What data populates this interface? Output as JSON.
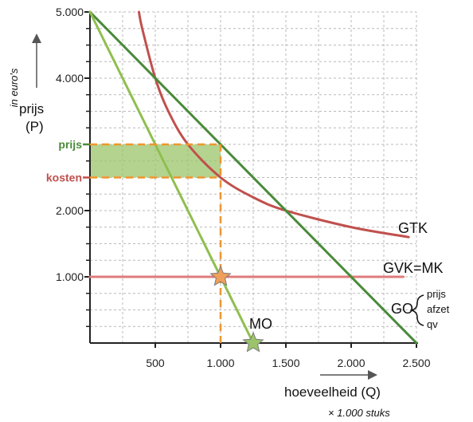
{
  "chart_data": {
    "type": "line",
    "ylabel_unit": "in euro's",
    "ylabel_name": "prijs",
    "ylabel_symbol": "(P)",
    "xlabel": "hoeveelheid (Q)",
    "x_multiplier_note": "× 1.000 stuks",
    "xlim": [
      0,
      2500
    ],
    "ylim": [
      0,
      5000
    ],
    "x_ticks": [
      500,
      1000,
      1500,
      2000,
      2500
    ],
    "x_tick_labels": [
      "500",
      "1.000",
      "1.500",
      "2.000",
      "2.500"
    ],
    "y_ticks": [
      1000,
      2000,
      4000,
      5000
    ],
    "y_tick_labels": [
      "1.000",
      "2.000",
      "4.000",
      "5.000"
    ],
    "grid": true,
    "series": [
      {
        "name": "GTK",
        "color": "#c0504d",
        "kind": "curve",
        "x": [
          375,
          400,
          500,
          600,
          750,
          1000,
          1250,
          1500,
          2000,
          2440
        ],
        "y": [
          5000,
          4750,
          4000,
          3500,
          3000,
          2500,
          2200,
          2000,
          1750,
          1600
        ]
      },
      {
        "name": "GVK=MK",
        "color": "#e07b7b",
        "kind": "line",
        "x": [
          0,
          2400
        ],
        "y": [
          1000,
          1000
        ]
      },
      {
        "name": "GO",
        "color": "#4a8a3a",
        "kind": "line",
        "x": [
          0,
          2500
        ],
        "y": [
          5000,
          0
        ]
      },
      {
        "name": "MO",
        "color": "#8fbf4f",
        "kind": "line",
        "x": [
          0,
          1250
        ],
        "y": [
          5000,
          0
        ]
      }
    ],
    "go_brace_items": [
      "prijs",
      "afzet",
      "qv"
    ],
    "annotations": [
      {
        "label": "prijs",
        "y": 3000,
        "color": "#4a8a3a"
      },
      {
        "label": "kosten",
        "y": 2500,
        "color": "#c0504d"
      }
    ],
    "profit_rect": {
      "x": [
        0,
        1000
      ],
      "y": [
        2500,
        3000
      ],
      "color": "#9bc46a"
    },
    "markers": [
      {
        "x": 1000,
        "y": 1000,
        "shape": "star",
        "color": "#f0a05a"
      },
      {
        "x": 1250,
        "y": 0,
        "shape": "star",
        "color": "#9bc46a"
      }
    ],
    "guide_color": "#f0952f"
  }
}
